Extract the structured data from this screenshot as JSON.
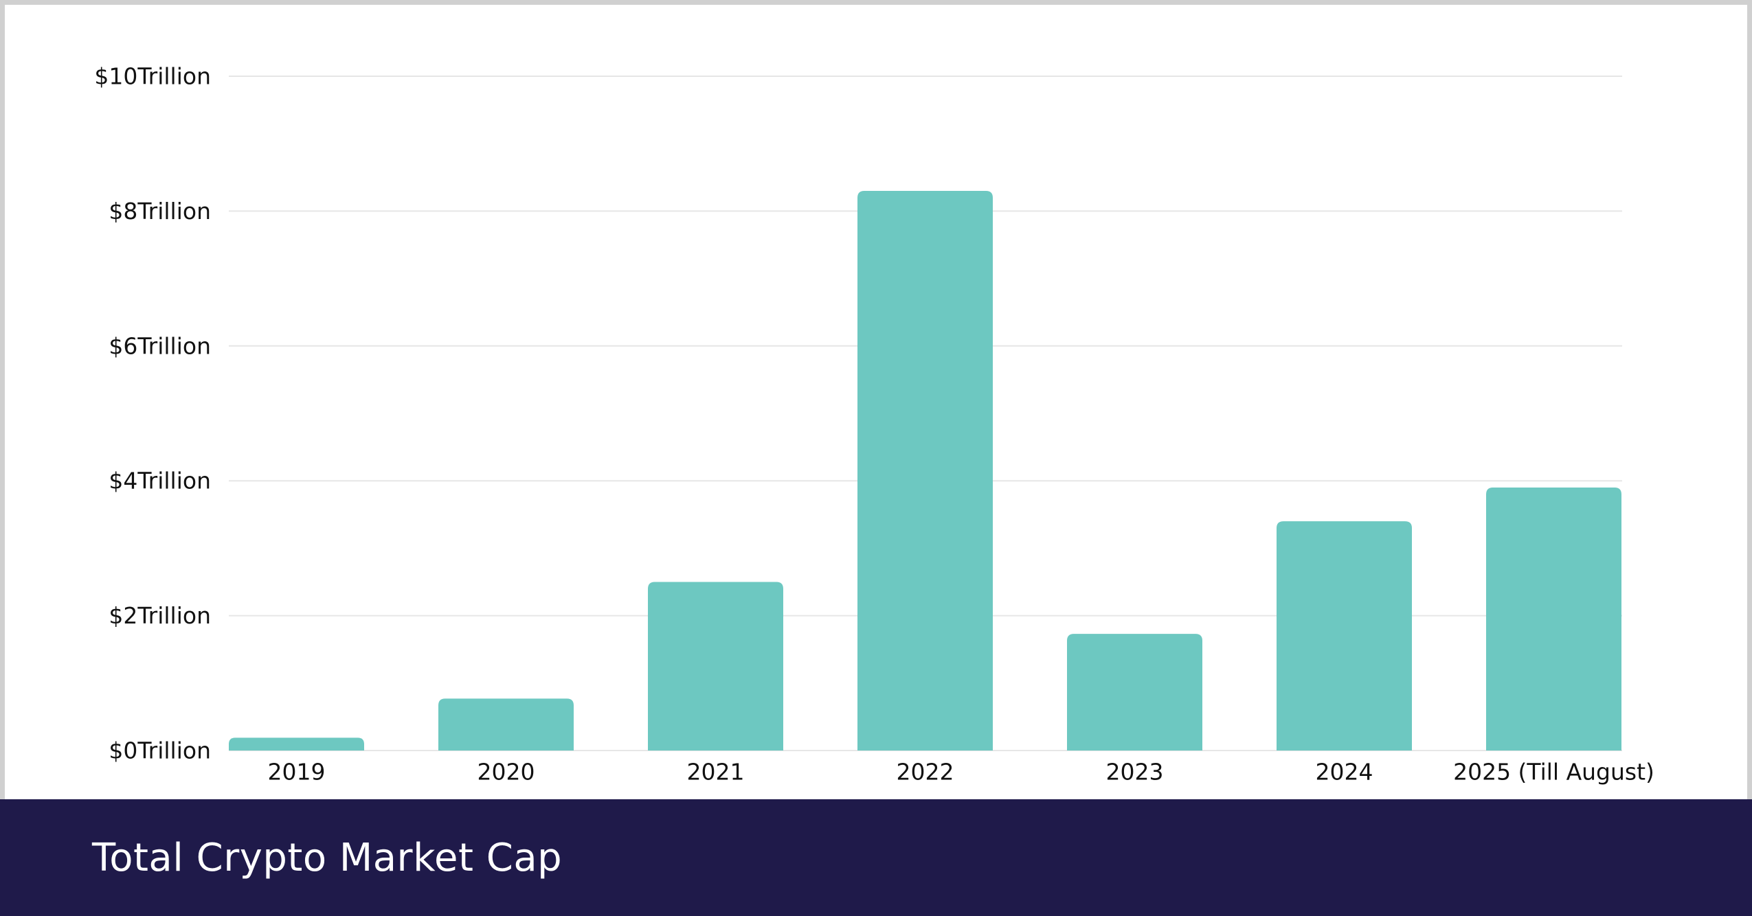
{
  "colors": {
    "bar": "#6dc8c1",
    "footer_background": "#1f1a4a",
    "gridline": "#e6e6e6",
    "text": "#111111"
  },
  "footer": {
    "title": "Total Crypto Market Cap"
  },
  "chart_data": {
    "type": "bar",
    "title": "Total Crypto Market Cap",
    "xlabel": "",
    "ylabel": "",
    "ylim": [
      0,
      10
    ],
    "yticks": [
      0,
      2,
      4,
      6,
      8,
      10
    ],
    "ytick_labels": [
      "$0Trillion",
      "$2Trillion",
      "$4Trillion",
      "$6Trillion",
      "$8Trillion",
      "$10Trillion"
    ],
    "categories": [
      "2019",
      "2020",
      "2021",
      "2022",
      "2023",
      "2024",
      "2025 (Till August)"
    ],
    "values": [
      0.19,
      0.77,
      2.5,
      8.3,
      1.73,
      3.4,
      3.9
    ],
    "unit": "Trillion USD",
    "grid": true,
    "legend": "none"
  }
}
